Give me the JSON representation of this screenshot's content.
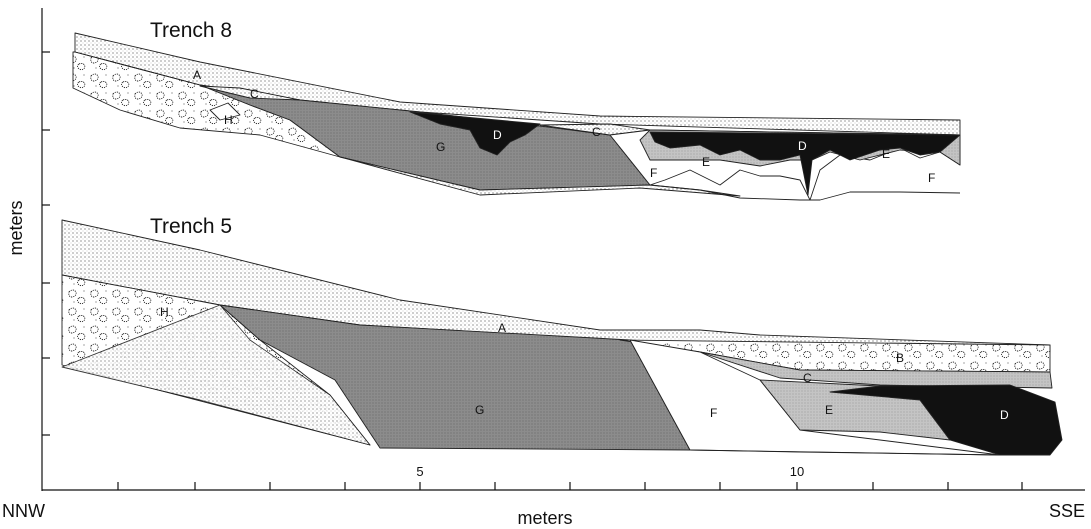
{
  "trenches": [
    {
      "title": "Trench 8",
      "layers": [
        "A",
        "C",
        "H",
        "D",
        "G",
        "C",
        "F",
        "E",
        "D",
        "E",
        "F"
      ]
    },
    {
      "title": "Trench 5",
      "layers": [
        "A",
        "H",
        "B",
        "C",
        "G",
        "F",
        "E",
        "D"
      ]
    }
  ],
  "axes": {
    "y_label": "meters",
    "x_label": "meters",
    "x_left": "NNW",
    "x_right": "SSE",
    "x_tick_labels": [
      "5",
      "10"
    ]
  }
}
